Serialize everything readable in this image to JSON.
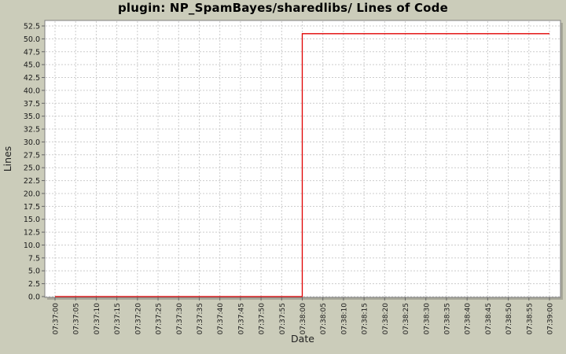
{
  "chart_data": {
    "type": "line",
    "title": "plugin: NP_SpamBayes/sharedlibs/ Lines of Code",
    "xlabel": "Date",
    "ylabel": "Lines",
    "grid": true,
    "legend": "none",
    "ylim": [
      0,
      52.5
    ],
    "y_ticks": [
      0,
      2.5,
      5,
      7.5,
      10,
      12.5,
      15,
      17.5,
      20,
      22.5,
      25,
      27.5,
      30,
      32.5,
      35,
      37.5,
      40,
      42.5,
      45,
      47.5,
      50,
      52.5
    ],
    "x_ticks": [
      "07:37:00",
      "07:37:05",
      "07:37:10",
      "07:37:15",
      "07:37:20",
      "07:37:25",
      "07:37:30",
      "07:37:35",
      "07:37:40",
      "07:37:45",
      "07:37:50",
      "07:37:55",
      "07:38:00",
      "07:38:05",
      "07:38:10",
      "07:38:15",
      "07:38:20",
      "07:38:25",
      "07:38:30",
      "07:38:35",
      "07:38:40",
      "07:38:45",
      "07:38:50",
      "07:38:55",
      "07:39:00"
    ],
    "series": [
      {
        "name": "Lines of Code",
        "color": "#e00000",
        "step": true,
        "points": [
          {
            "x": "07:37:00",
            "y": 0
          },
          {
            "x": "07:38:00",
            "y": 0
          },
          {
            "x": "07:38:00",
            "y": 51
          },
          {
            "x": "07:39:00",
            "y": 51
          }
        ]
      }
    ],
    "colors": {
      "page_background": "#cbccba",
      "plot_background": "#ffffff",
      "plot_shadow": "#a8a89a",
      "gridline": "#cccccc",
      "plot_border": "#808080",
      "tick_mark": "#666666",
      "tick_label": "#1a1a1a",
      "title": "#000000"
    }
  }
}
